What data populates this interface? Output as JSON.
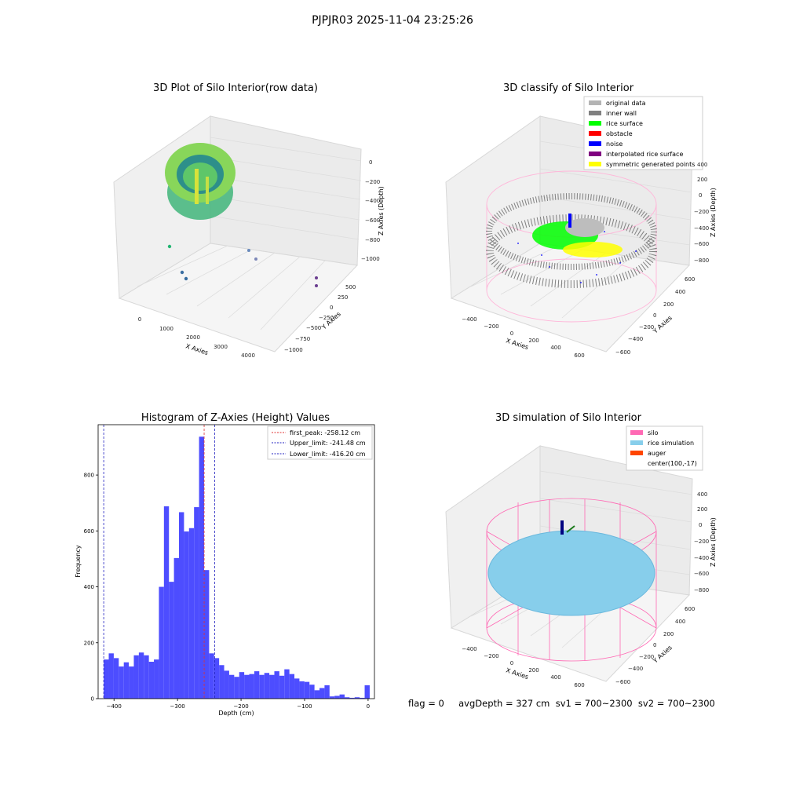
{
  "figure_title": "PJPJR03 2025-11-04 23:25:26",
  "status_line": "flag = 0     avgDepth = 327 cm  sv1 = 700~2300  sv2 = 700~2300",
  "colors": {
    "hist_bar": "#4d4dff",
    "first_peak": "#e03030",
    "limits": "#2020c0",
    "silo": "#ff69b4",
    "rice_sim": "#87ceeb",
    "auger": "#ff4500",
    "inner_wall": "#808080",
    "rice_surface": "#00ff00",
    "noise": "#0000ff",
    "symmetric": "#ffff00"
  },
  "panel_raw": {
    "title": "3D Plot of Silo Interior(row data)",
    "xlabel": "X Axies",
    "ylabel": "Y Axies",
    "zlabel": "Z Axies (Depth)",
    "xticks": [
      "0",
      "1000",
      "2000",
      "3000",
      "4000"
    ],
    "yticks": [
      "500",
      "250",
      "0",
      "−250",
      "−500",
      "−750",
      "−1000"
    ],
    "zticks": [
      "0",
      "−200",
      "−400",
      "−600",
      "−800",
      "−1000"
    ]
  },
  "panel_classify": {
    "title": "3D classify of Silo Interior",
    "xlabel": "X Axies",
    "ylabel": "Y Axies",
    "zlabel": "Z Axies (Depth)",
    "xticks": [
      "−400",
      "−200",
      "0",
      "200",
      "400",
      "600"
    ],
    "yticks": [
      "600",
      "400",
      "200",
      "0",
      "−200",
      "−400",
      "−600"
    ],
    "zticks": [
      "400",
      "200",
      "0",
      "−200",
      "−400",
      "−600",
      "−800"
    ],
    "legend": [
      {
        "label": "original data",
        "color": "#b4b4b4"
      },
      {
        "label": "inner wall",
        "color": "#808080"
      },
      {
        "label": "rice surface",
        "color": "#00ff00"
      },
      {
        "label": "obstacle",
        "color": "#ff0000"
      },
      {
        "label": "noise",
        "color": "#0000ff"
      },
      {
        "label": "interpolated rice surface",
        "color": "#800080"
      },
      {
        "label": "symmetric generated points",
        "color": "#ffff00"
      }
    ]
  },
  "panel_sim": {
    "title": "3D simulation of Silo Interior",
    "xlabel": "X Axies",
    "ylabel": "Y Axies",
    "zlabel": "Z Axies (Depth)",
    "xticks": [
      "−400",
      "−200",
      "0",
      "200",
      "400",
      "600"
    ],
    "yticks": [
      "600",
      "400",
      "200",
      "0",
      "−200",
      "−400",
      "−600"
    ],
    "zticks": [
      "400",
      "200",
      "0",
      "−200",
      "−400",
      "−600",
      "−800"
    ],
    "legend": [
      {
        "label": "silo",
        "color": "#ff69b4"
      },
      {
        "label": "rice simulation",
        "color": "#87ceeb"
      },
      {
        "label": "auger",
        "color": "#ff4500"
      },
      {
        "label": "center(100,-17)",
        "color": ""
      }
    ]
  },
  "chart_data": {
    "type": "bar",
    "title": "Histogram of Z-Axies (Height) Values",
    "xlabel": "Depth (cm)",
    "ylabel": "Frequency",
    "xlim": [
      -425,
      10
    ],
    "ylim": [
      0,
      980
    ],
    "bin_width": 7.9,
    "xticks": [
      -400,
      -300,
      -200,
      -100,
      0
    ],
    "xtick_labels": [
      "−400",
      "−300",
      "−200",
      "−100",
      "0"
    ],
    "yticks": [
      0,
      200,
      400,
      600,
      800
    ],
    "bins_start": [
      -416.2,
      -408.3,
      -400.4,
      -392.5,
      -384.6,
      -376.7,
      -368.8,
      -360.9,
      -353.0,
      -345.1,
      -337.2,
      -329.3,
      -321.4,
      -313.5,
      -305.6,
      -297.7,
      -289.8,
      -281.9,
      -274.0,
      -266.1,
      -258.2,
      -250.3,
      -242.4,
      -234.5,
      -226.6,
      -218.7,
      -210.8,
      -202.9,
      -195.0,
      -187.1,
      -179.2,
      -171.3,
      -163.4,
      -155.5,
      -147.6,
      -139.7,
      -131.8,
      -123.9,
      -116.0,
      -108.1,
      -100.2,
      -92.3,
      -84.4,
      -76.5,
      -68.6,
      -60.7,
      -52.8,
      -44.9,
      -37.0,
      -29.1,
      -21.2,
      -13.3,
      -5.4
    ],
    "values": [
      140,
      162,
      145,
      115,
      130,
      115,
      155,
      165,
      155,
      132,
      140,
      400,
      688,
      418,
      503,
      667,
      598,
      610,
      685,
      937,
      460,
      162,
      145,
      120,
      100,
      85,
      78,
      95,
      85,
      88,
      98,
      85,
      92,
      85,
      98,
      82,
      105,
      88,
      72,
      62,
      60,
      50,
      30,
      38,
      48,
      8,
      10,
      15,
      5,
      3,
      5,
      3,
      48
    ],
    "reference_lines": [
      {
        "name": "first_peak: -258.12 cm",
        "x": -258.12,
        "color": "#e03030"
      },
      {
        "name": "Upper_limit: -241.48 cm",
        "x": -241.48,
        "color": "#2020c0"
      },
      {
        "name": "Lower_limit: -416.20 cm",
        "x": -416.2,
        "color": "#2020c0"
      }
    ],
    "legend_position": "top-right",
    "grid": false
  }
}
